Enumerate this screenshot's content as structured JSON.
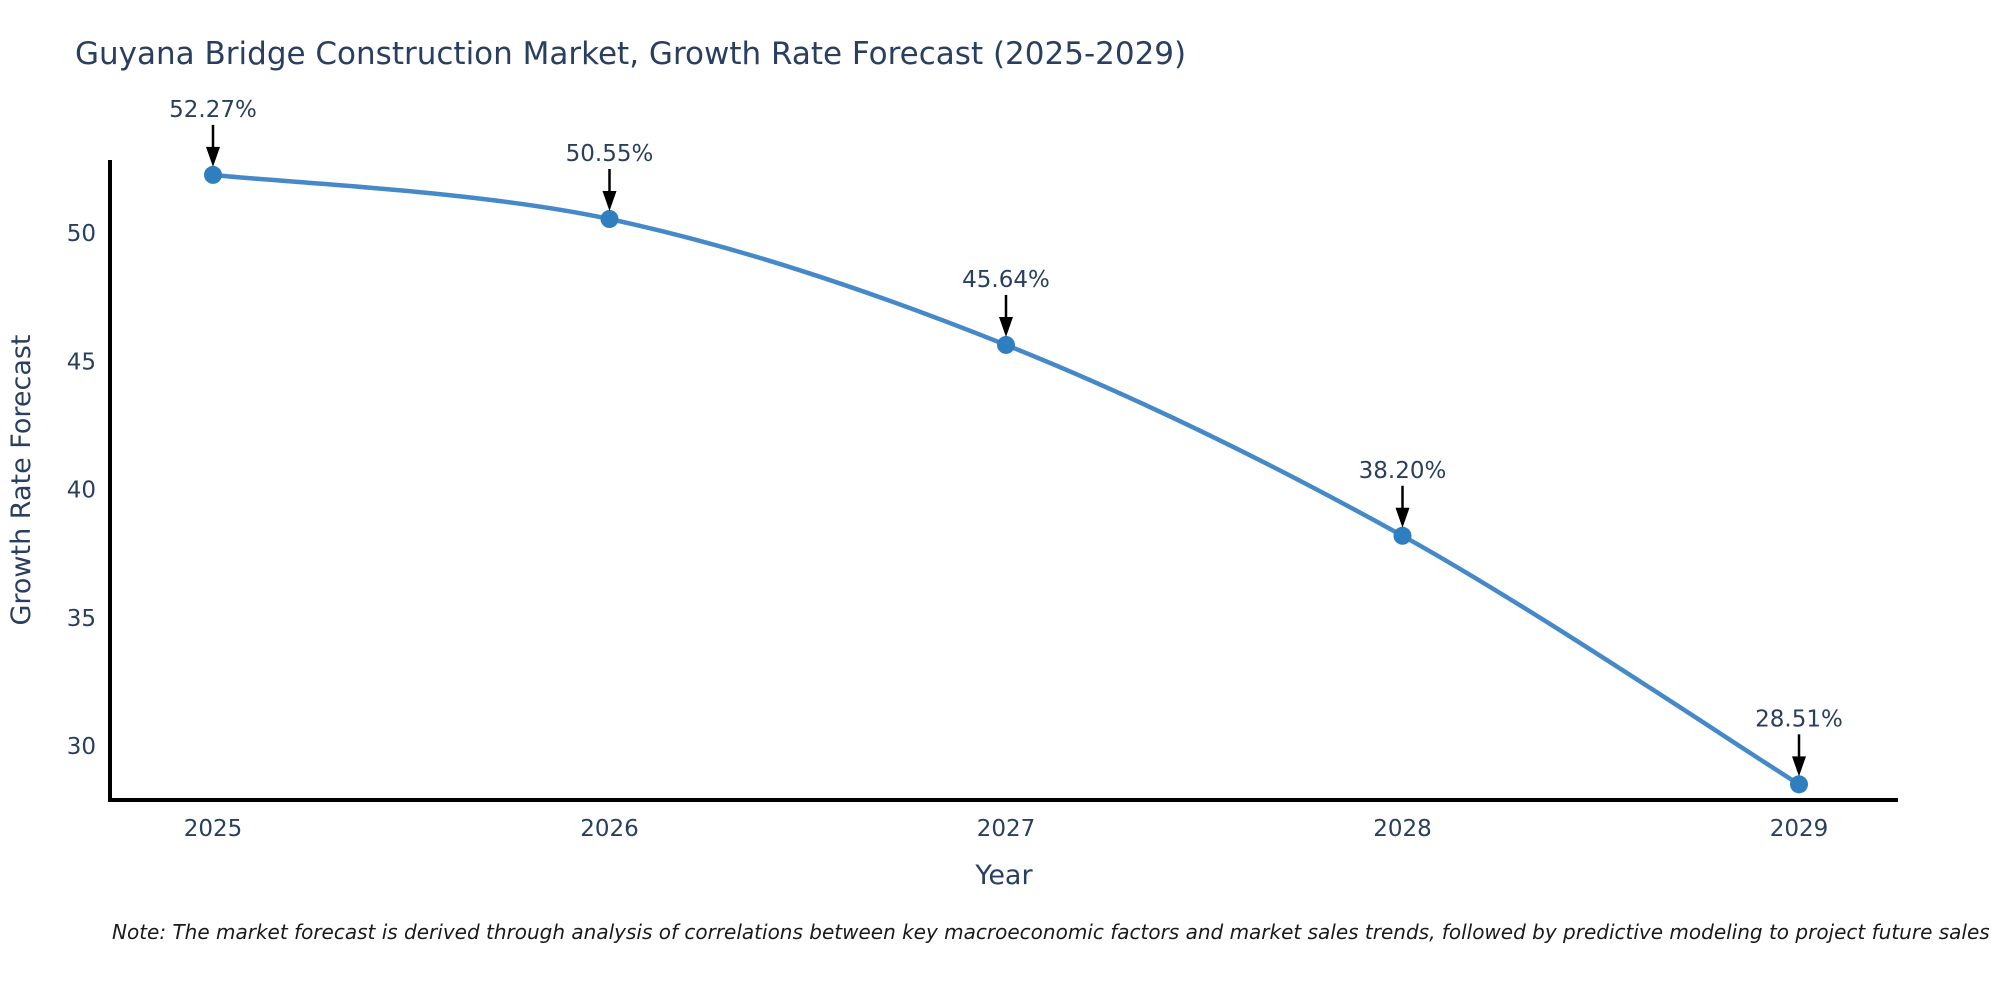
{
  "title": "Guyana Bridge Construction Market, Growth Rate Forecast (2025-2029)",
  "note": "Note: The market forecast is derived through analysis of correlations between key macroeconomic factors and market sales trends, followed by predictive modeling to project future sales",
  "chart_data": {
    "type": "line",
    "title": "Guyana Bridge Construction Market, Growth Rate Forecast (2025-2029)",
    "x": [
      2025,
      2026,
      2027,
      2028,
      2029
    ],
    "xticks": [
      "2025",
      "2026",
      "2027",
      "2028",
      "2029"
    ],
    "series": [
      {
        "name": "Growth Rate Forecast",
        "values": [
          52.27,
          50.55,
          45.64,
          38.2,
          28.51
        ]
      }
    ],
    "point_labels": [
      "52.27%",
      "50.55%",
      "45.64%",
      "38.20%",
      "28.51%"
    ],
    "xlabel": "Year",
    "ylabel": "Growth Rate Forecast",
    "yticks": [
      30,
      35,
      40,
      45,
      50
    ],
    "ylim": [
      27.9,
      52.85
    ],
    "grid": false,
    "legend": "none",
    "line_shape": "spline",
    "colors": {
      "line": "#4689c8",
      "marker": "#2f7fc0",
      "axis": "#000000",
      "text": "#2a3f5f",
      "annotation_arrow": "#000000"
    }
  }
}
